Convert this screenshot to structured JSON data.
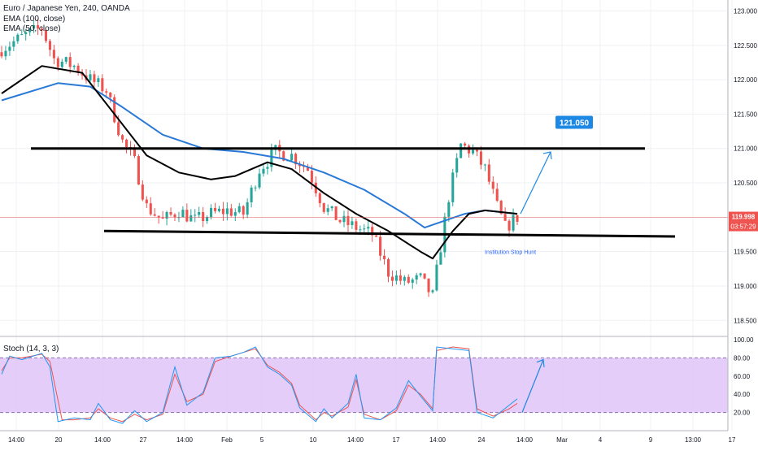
{
  "header": {
    "symbol_line": "Euro / Japanese Yen, 240, OANDA",
    "ema_fast": "EMA (100, close)",
    "ema_slow": "EMA (50, close)",
    "stoch_label": "Stoch (14, 3, 3)"
  },
  "price_badge": {
    "price": "119.998",
    "countdown": "03:57:29"
  },
  "target_label": "121.050",
  "annotation": "Institution Stop Hunt",
  "colors": {
    "up": "#26a69a",
    "down": "#ef5350",
    "ema100": "#2979d6",
    "ema50": "#000000",
    "stoch_k": "#2196f3",
    "stoch_d": "#ef5350",
    "stoch_band": "#e1c8f7",
    "price_line": "#ef5350",
    "target": "#1e88e5"
  },
  "chart_data": [
    {
      "type": "candlestick",
      "title": "Euro / Japanese Yen, 240, OANDA",
      "ylim": [
        118.35,
        123.1
      ],
      "y_ticks": [
        "118.500",
        "119.000",
        "119.500",
        "120.000",
        "120.500",
        "121.000",
        "121.500",
        "122.000",
        "122.500",
        "123.000"
      ],
      "x_ticks": [
        "14:00",
        "20",
        "14:00",
        "27",
        "14:00",
        "Feb",
        "5",
        "10",
        "14:00",
        "17",
        "14:00",
        "24",
        "14:00",
        "Mar",
        "4",
        "9",
        "13:00",
        "17"
      ],
      "ohlc_x_range": [
        0,
        128
      ],
      "anchors_close": [
        [
          0,
          122.45
        ],
        [
          6,
          122.65
        ],
        [
          10,
          122.75
        ],
        [
          13,
          122.3
        ],
        [
          18,
          122.2
        ],
        [
          22,
          122.0
        ],
        [
          26,
          121.85
        ],
        [
          30,
          121.1
        ],
        [
          33,
          120.8
        ],
        [
          36,
          120.15
        ],
        [
          40,
          119.95
        ],
        [
          44,
          120.1
        ],
        [
          48,
          119.95
        ],
        [
          52,
          120.05
        ],
        [
          56,
          120.1
        ],
        [
          60,
          120.05
        ],
        [
          64,
          120.7
        ],
        [
          68,
          120.95
        ],
        [
          72,
          120.9
        ],
        [
          76,
          120.7
        ],
        [
          80,
          120.15
        ],
        [
          84,
          119.95
        ],
        [
          88,
          119.85
        ],
        [
          92,
          119.75
        ],
        [
          96,
          119.2
        ],
        [
          100,
          119.05
        ],
        [
          104,
          119.1
        ],
        [
          107,
          118.85
        ],
        [
          111,
          120.3
        ],
        [
          114,
          121.05
        ],
        [
          117,
          120.95
        ],
        [
          120,
          120.7
        ],
        [
          123,
          120.15
        ],
        [
          125,
          119.85
        ],
        [
          128,
          120.0
        ]
      ],
      "resistance_level": 121.0,
      "support_line": {
        "from": [
          25,
          119.8
        ],
        "to": [
          165,
          119.72
        ]
      },
      "current_price": 119.998,
      "target": {
        "label": "121.050",
        "value": 121.05
      },
      "series": [
        {
          "name": "EMA (100, close)",
          "values": [
            [
              0,
              121.7
            ],
            [
              14,
              121.95
            ],
            [
              22,
              121.9
            ],
            [
              30,
              121.6
            ],
            [
              40,
              121.2
            ],
            [
              50,
              121.0
            ],
            [
              60,
              120.95
            ],
            [
              70,
              120.85
            ],
            [
              80,
              120.65
            ],
            [
              90,
              120.4
            ],
            [
              100,
              120.05
            ],
            [
              105,
              119.85
            ],
            [
              110,
              119.95
            ],
            [
              115,
              120.05
            ],
            [
              120,
              120.1
            ],
            [
              128,
              120.05
            ]
          ]
        },
        {
          "name": "EMA (50, close)",
          "values": [
            [
              0,
              121.8
            ],
            [
              10,
              122.2
            ],
            [
              20,
              122.1
            ],
            [
              28,
              121.5
            ],
            [
              36,
              120.9
            ],
            [
              44,
              120.65
            ],
            [
              52,
              120.55
            ],
            [
              58,
              120.6
            ],
            [
              66,
              120.8
            ],
            [
              72,
              120.7
            ],
            [
              80,
              120.35
            ],
            [
              88,
              120.05
            ],
            [
              96,
              119.8
            ],
            [
              104,
              119.5
            ],
            [
              107,
              119.4
            ],
            [
              112,
              119.8
            ],
            [
              116,
              120.05
            ],
            [
              120,
              120.1
            ],
            [
              128,
              120.05
            ]
          ]
        }
      ],
      "annotations": [
        "Institution Stop Hunt"
      ]
    },
    {
      "type": "line",
      "title": "Stoch (14, 3, 3)",
      "ylim": [
        0,
        100
      ],
      "y_ticks": [
        "20.00",
        "40.00",
        "60.00",
        "80.00",
        "100.00"
      ],
      "band": [
        20,
        80
      ],
      "series": [
        {
          "name": "%K",
          "values": [
            [
              0,
              62
            ],
            [
              2,
              82
            ],
            [
              5,
              78
            ],
            [
              10,
              85
            ],
            [
              12,
              70
            ],
            [
              14,
              10
            ],
            [
              18,
              14
            ],
            [
              22,
              12
            ],
            [
              24,
              30
            ],
            [
              27,
              12
            ],
            [
              30,
              8
            ],
            [
              33,
              22
            ],
            [
              36,
              10
            ],
            [
              40,
              20
            ],
            [
              43,
              70
            ],
            [
              46,
              28
            ],
            [
              50,
              42
            ],
            [
              53,
              80
            ],
            [
              57,
              82
            ],
            [
              60,
              86
            ],
            [
              63,
              92
            ],
            [
              66,
              70
            ],
            [
              69,
              62
            ],
            [
              72,
              50
            ],
            [
              74,
              25
            ],
            [
              78,
              10
            ],
            [
              80,
              24
            ],
            [
              82,
              14
            ],
            [
              86,
              30
            ],
            [
              88,
              62
            ],
            [
              90,
              14
            ],
            [
              94,
              12
            ],
            [
              98,
              25
            ],
            [
              101,
              55
            ],
            [
              104,
              38
            ],
            [
              107,
              22
            ],
            [
              108,
              92
            ],
            [
              112,
              90
            ],
            [
              116,
              88
            ],
            [
              118,
              20
            ],
            [
              122,
              14
            ],
            [
              126,
              28
            ],
            [
              128,
              35
            ]
          ]
        },
        {
          "name": "%D",
          "values": [
            [
              0,
              66
            ],
            [
              2,
              80
            ],
            [
              5,
              80
            ],
            [
              10,
              84
            ],
            [
              12,
              76
            ],
            [
              15,
              12
            ],
            [
              18,
              12
            ],
            [
              22,
              14
            ],
            [
              24,
              24
            ],
            [
              27,
              14
            ],
            [
              30,
              10
            ],
            [
              33,
              18
            ],
            [
              36,
              12
            ],
            [
              40,
              18
            ],
            [
              43,
              62
            ],
            [
              46,
              32
            ],
            [
              50,
              40
            ],
            [
              53,
              76
            ],
            [
              57,
              82
            ],
            [
              60,
              86
            ],
            [
              63,
              90
            ],
            [
              66,
              72
            ],
            [
              69,
              64
            ],
            [
              72,
              52
            ],
            [
              74,
              28
            ],
            [
              78,
              12
            ],
            [
              80,
              20
            ],
            [
              82,
              16
            ],
            [
              86,
              26
            ],
            [
              88,
              56
            ],
            [
              90,
              18
            ],
            [
              94,
              12
            ],
            [
              98,
              22
            ],
            [
              101,
              50
            ],
            [
              104,
              40
            ],
            [
              107,
              24
            ],
            [
              108,
              88
            ],
            [
              112,
              92
            ],
            [
              116,
              90
            ],
            [
              118,
              24
            ],
            [
              122,
              16
            ],
            [
              126,
              24
            ],
            [
              128,
              30
            ]
          ]
        }
      ]
    }
  ]
}
